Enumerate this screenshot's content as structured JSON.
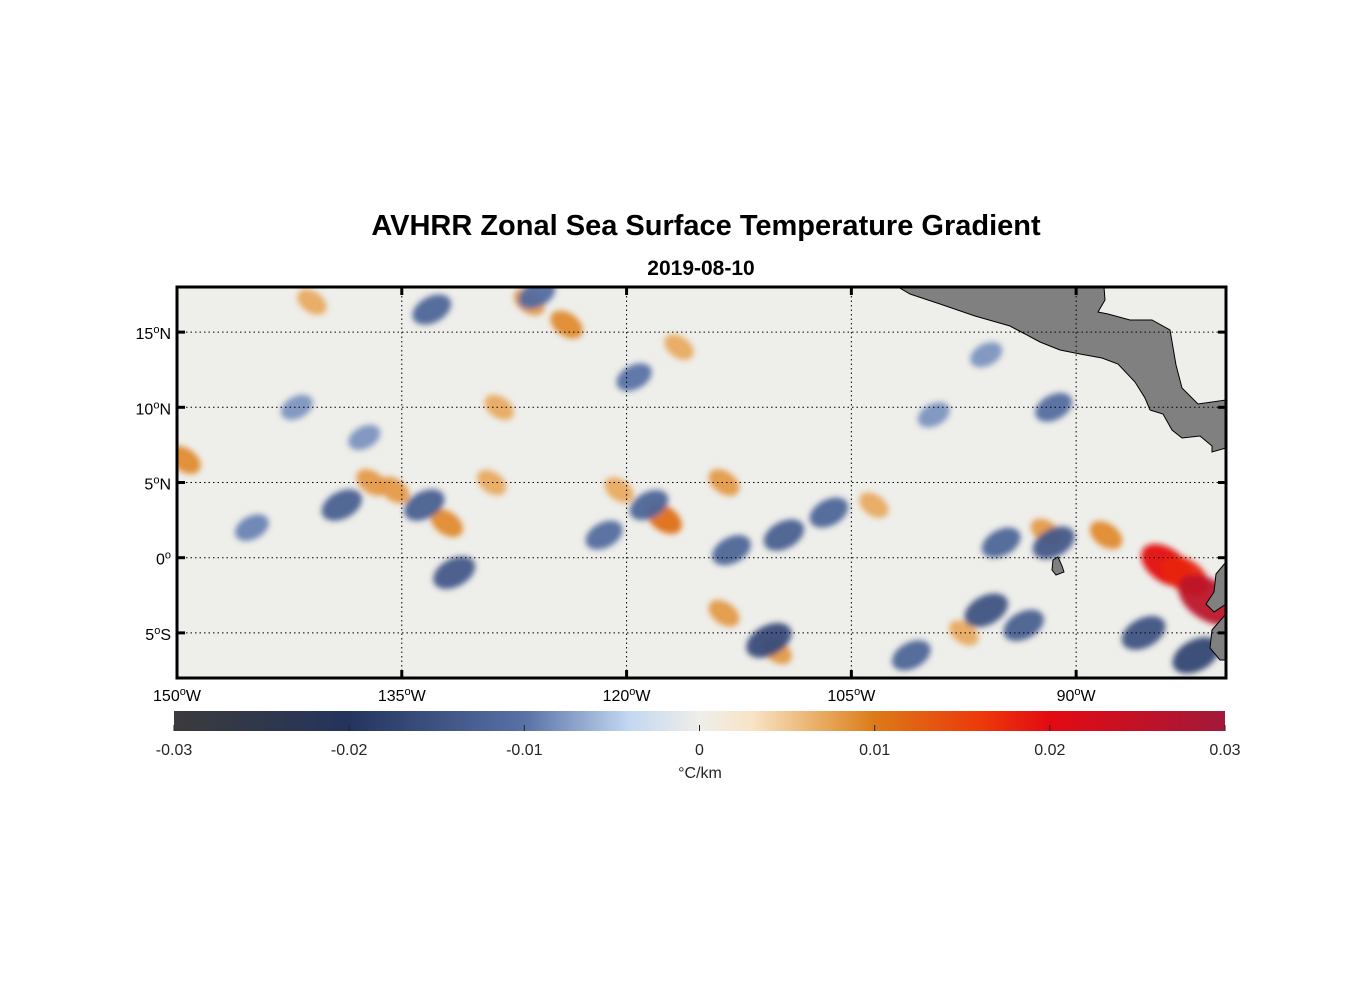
{
  "chart_data": {
    "type": "heatmap",
    "title": "AVHRR Zonal Sea Surface Temperature Gradient",
    "subtitle": "2019-08-10",
    "x_axis": {
      "range": [
        -150,
        -80
      ],
      "ticks": [
        {
          "value": -150,
          "deg": "150",
          "suffix": "W"
        },
        {
          "value": -135,
          "deg": "135",
          "suffix": "W"
        },
        {
          "value": -120,
          "deg": "120",
          "suffix": "W"
        },
        {
          "value": -105,
          "deg": "105",
          "suffix": "W"
        },
        {
          "value": -90,
          "deg": "90",
          "suffix": "W"
        }
      ]
    },
    "y_axis": {
      "range": [
        -8,
        18
      ],
      "ticks": [
        {
          "value": 15,
          "deg": "15",
          "suffix": "N"
        },
        {
          "value": 10,
          "deg": "10",
          "suffix": "N"
        },
        {
          "value": 5,
          "deg": "5",
          "suffix": "N"
        },
        {
          "value": 0,
          "deg": "0",
          "suffix": ""
        },
        {
          "value": -5,
          "deg": "5",
          "suffix": "S"
        }
      ]
    },
    "grid": true,
    "colorbar": {
      "label": "°C/km",
      "range": [
        -0.03,
        0.03
      ],
      "ticks": [
        {
          "value": -0.03,
          "label": "-0.03"
        },
        {
          "value": -0.02,
          "label": "-0.02"
        },
        {
          "value": -0.01,
          "label": "-0.01"
        },
        {
          "value": 0,
          "label": "0"
        },
        {
          "value": 0.01,
          "label": "0.01"
        },
        {
          "value": 0.02,
          "label": "0.02"
        },
        {
          "value": 0.03,
          "label": "0.03"
        }
      ],
      "colormap": [
        {
          "value": -0.03,
          "color": "#3b3b3b"
        },
        {
          "value": -0.02,
          "color": "#24345e"
        },
        {
          "value": -0.01,
          "color": "#5871a6"
        },
        {
          "value": -0.004,
          "color": "#c3d8f1"
        },
        {
          "value": 0,
          "color": "#eeeeea"
        },
        {
          "value": 0.003,
          "color": "#f8e4c6"
        },
        {
          "value": 0.007,
          "color": "#e8aa60"
        },
        {
          "value": 0.01,
          "color": "#dc7a18"
        },
        {
          "value": 0.016,
          "color": "#ec3a0a"
        },
        {
          "value": 0.02,
          "color": "#e30a12"
        },
        {
          "value": 0.03,
          "color": "#a2193a"
        }
      ]
    },
    "features": [
      {
        "name": "warm-ring-119w",
        "lon": -117.5,
        "lat": 2.6,
        "value": 0.011
      },
      {
        "name": "warm-ring-132w",
        "lon": -132.0,
        "lat": 2.3,
        "value": 0.009
      },
      {
        "name": "warm-136w",
        "lon": -135.5,
        "lat": 4.5,
        "value": 0.008
      },
      {
        "name": "warm-138w",
        "lon": -137.0,
        "lat": 5.0,
        "value": 0.008
      },
      {
        "name": "warm-128w",
        "lon": -129.0,
        "lat": 5.0,
        "value": 0.007
      },
      {
        "name": "warm-121w",
        "lon": -120.5,
        "lat": 4.5,
        "value": 0.007
      },
      {
        "name": "warm-114w",
        "lon": -113.5,
        "lat": 5.0,
        "value": 0.008
      },
      {
        "name": "warm-125w",
        "lon": -124.0,
        "lat": 15.5,
        "value": 0.009
      },
      {
        "name": "warm-127w",
        "lon": -126.5,
        "lat": 17.0,
        "value": 0.008
      },
      {
        "name": "warm-128w-9n",
        "lon": -128.5,
        "lat": 10.0,
        "value": 0.007
      },
      {
        "name": "warm-141w",
        "lon": -141.0,
        "lat": 17.0,
        "value": 0.007
      },
      {
        "name": "warm-150w",
        "lon": -149.5,
        "lat": 6.5,
        "value": 0.009
      },
      {
        "name": "warm-116w",
        "lon": -116.5,
        "lat": 14.0,
        "value": 0.007
      },
      {
        "name": "warm-104w",
        "lon": -103.5,
        "lat": 3.5,
        "value": 0.007
      },
      {
        "name": "warm-92w",
        "lon": -92.0,
        "lat": 1.7,
        "value": 0.008
      },
      {
        "name": "warm-88w",
        "lon": -88.0,
        "lat": 1.5,
        "value": 0.009
      },
      {
        "name": "warm-114w-s",
        "lon": -113.5,
        "lat": -3.7,
        "value": 0.008
      },
      {
        "name": "warm-110w-s",
        "lon": -110.0,
        "lat": -6.2,
        "value": 0.008
      },
      {
        "name": "warm-97w",
        "lon": -97.5,
        "lat": -5.0,
        "value": 0.007
      },
      {
        "name": "warm-core-84w",
        "lon": -84.0,
        "lat": -0.5,
        "value": 0.02
      },
      {
        "name": "warm-core-83w",
        "lon": -82.7,
        "lat": -1.2,
        "value": 0.018
      },
      {
        "name": "warm-core-81w",
        "lon": -81.2,
        "lat": -2.8,
        "value": 0.026
      },
      {
        "name": "cold-band-137w",
        "lon": -139.0,
        "lat": 3.5,
        "value": -0.013
      },
      {
        "name": "cold-band-145w",
        "lon": -145.0,
        "lat": 2.0,
        "value": -0.009
      },
      {
        "name": "cold-band-131w",
        "lon": -131.5,
        "lat": -1.0,
        "value": -0.014
      },
      {
        "name": "cold-band-133w",
        "lon": -133.5,
        "lat": 3.5,
        "value": -0.013
      },
      {
        "name": "cold-band-122w",
        "lon": -121.5,
        "lat": 1.5,
        "value": -0.011
      },
      {
        "name": "cold-band-118w",
        "lon": -118.5,
        "lat": 3.5,
        "value": -0.012
      },
      {
        "name": "cold-band-110w",
        "lon": -109.5,
        "lat": 1.5,
        "value": -0.013
      },
      {
        "name": "cold-band-106w",
        "lon": -106.5,
        "lat": 3.0,
        "value": -0.012
      },
      {
        "name": "cold-band-113w",
        "lon": -113.0,
        "lat": 0.5,
        "value": -0.012
      },
      {
        "name": "cold-110w-s",
        "lon": -110.5,
        "lat": -5.5,
        "value": -0.016
      },
      {
        "name": "cold-100w-s",
        "lon": -101.0,
        "lat": -6.5,
        "value": -0.012
      },
      {
        "name": "cold-96w-s",
        "lon": -96.0,
        "lat": -3.5,
        "value": -0.015
      },
      {
        "name": "cold-93w-s",
        "lon": -93.5,
        "lat": -4.5,
        "value": -0.013
      },
      {
        "name": "cold-95w",
        "lon": -95.0,
        "lat": 1.0,
        "value": -0.012
      },
      {
        "name": "cold-91w",
        "lon": -91.5,
        "lat": 1.0,
        "value": -0.014
      },
      {
        "name": "cold-85w-s",
        "lon": -85.5,
        "lat": -5.0,
        "value": -0.015
      },
      {
        "name": "cold-82w-s",
        "lon": -82.0,
        "lat": -6.5,
        "value": -0.017
      },
      {
        "name": "cold-133w-n",
        "lon": -133.0,
        "lat": 16.5,
        "value": -0.012
      },
      {
        "name": "cold-126w-n",
        "lon": -126.0,
        "lat": 17.5,
        "value": -0.011
      },
      {
        "name": "cold-120w-n",
        "lon": -119.5,
        "lat": 12.0,
        "value": -0.01
      },
      {
        "name": "cold-142w-n",
        "lon": -142.0,
        "lat": 10.0,
        "value": -0.008
      },
      {
        "name": "cold-138w-n",
        "lon": -137.5,
        "lat": 8.0,
        "value": -0.008
      },
      {
        "name": "cold-92w-n",
        "lon": -91.5,
        "lat": 10.0,
        "value": -0.011
      },
      {
        "name": "cold-96w-n",
        "lon": -96.0,
        "lat": 13.5,
        "value": -0.008
      },
      {
        "name": "cold-100w-n",
        "lon": -99.5,
        "lat": 9.5,
        "value": -0.008
      }
    ],
    "land": [
      "Central America",
      "Galapagos Islands",
      "South America coast"
    ]
  }
}
